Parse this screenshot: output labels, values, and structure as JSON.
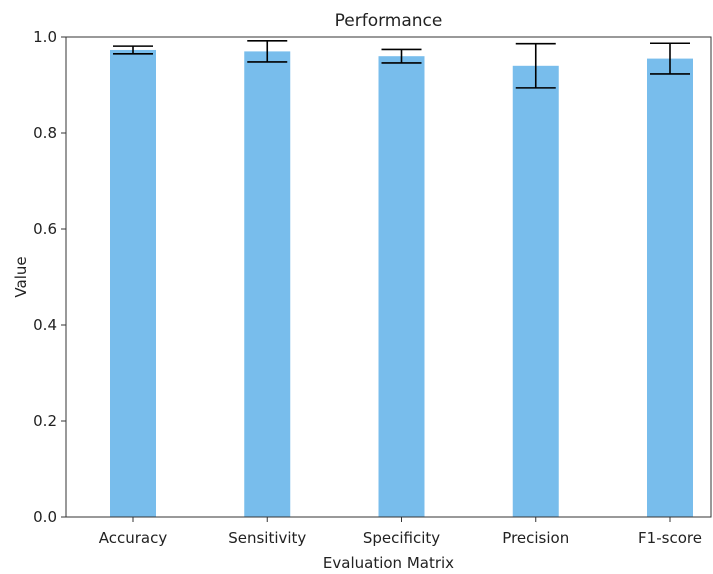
{
  "chart_data": {
    "type": "bar",
    "title": "Performance",
    "xlabel": "Evaluation Matrix",
    "ylabel": "Value",
    "categories": [
      "Accuracy",
      "Sensitivity",
      "Specificity",
      "Precision",
      "F1-score"
    ],
    "values": [
      0.973,
      0.97,
      0.96,
      0.94,
      0.955
    ],
    "errors": [
      0.008,
      0.022,
      0.014,
      0.046,
      0.032
    ],
    "ylim": [
      0,
      1.0
    ],
    "yticks": [
      "0.0",
      "0.2",
      "0.4",
      "0.6",
      "0.8",
      "1.0"
    ],
    "grid": false,
    "legend": "none",
    "bar_color": "#78bdec",
    "error_color": "#000000"
  }
}
